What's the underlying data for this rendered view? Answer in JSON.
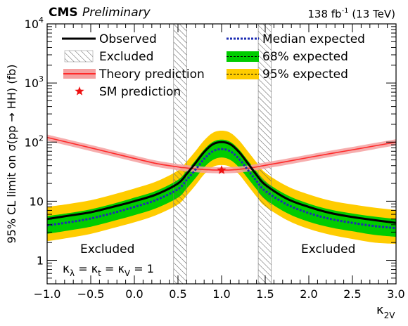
{
  "header": {
    "experiment": "CMS",
    "status": "Preliminary",
    "lumi_prefix": "138 fb",
    "lumi_exp": "-1",
    "lumi_suffix": " (13 TeV)"
  },
  "axes": {
    "ylabel": "95% CL limit on σ(pp → HH) (fb)",
    "xlabel_main": "κ",
    "xlabel_sub": "2V"
  },
  "annotations": {
    "excluded_left": "Excluded",
    "excluded_right": "Excluded",
    "note_kappa": "κ",
    "note_lambda": "λ",
    "note_eq1": " = κ",
    "note_t": "t",
    "note_eq2": " = κ",
    "note_v": "V",
    "note_eq3": " = 1"
  },
  "legend": {
    "observed": "Observed",
    "excluded": "Excluded",
    "theory": "Theory prediction",
    "sm": "SM prediction",
    "median": "Median expected",
    "band68": "68% expected",
    "band95": "95% expected"
  },
  "colors": {
    "observed": "#000000",
    "median": "#1d2db3",
    "band68": "#00cc00",
    "band95": "#ffcc00",
    "theory": "#ff2a2a",
    "theory_band": "#f4a0a0",
    "sm_star": "#ee1111",
    "excluded_hatch": "#555555"
  },
  "chart_data": {
    "type": "line",
    "title": "",
    "xlabel": "κ2V",
    "ylabel": "95% CL limit on σ(pp → HH) (fb)",
    "xlim": [
      -1.0,
      3.0
    ],
    "ylim": [
      0.4,
      10000
    ],
    "yscale": "log",
    "x_ticks": [
      "−1.0",
      "−0.5",
      "0.0",
      "0.5",
      "1.0",
      "1.5",
      "2.0",
      "2.5",
      "3.0"
    ],
    "x_tick_values": [
      -1.0,
      -0.5,
      0.0,
      0.5,
      1.0,
      1.5,
      2.0,
      2.5,
      3.0
    ],
    "y_ticks": [
      {
        "value": 1,
        "base": "1",
        "exp": ""
      },
      {
        "value": 10,
        "base": "10",
        "exp": ""
      },
      {
        "value": 100,
        "base": "10",
        "exp": "2"
      },
      {
        "value": 1000,
        "base": "10",
        "exp": "3"
      },
      {
        "value": 10000,
        "base": "10",
        "exp": "4"
      }
    ],
    "x": [
      -1.0,
      -0.75,
      -0.5,
      -0.25,
      0.0,
      0.25,
      0.5,
      0.6,
      0.7,
      0.8,
      0.9,
      1.0,
      1.1,
      1.2,
      1.3,
      1.4,
      1.5,
      1.75,
      2.0,
      2.25,
      2.5,
      2.75,
      3.0
    ],
    "series": [
      {
        "name": "Observed",
        "values": [
          5.0,
          5.7,
          6.5,
          8.0,
          10.0,
          13.0,
          20.0,
          29.0,
          44.0,
          68.0,
          92.0,
          100.0,
          92.0,
          68.0,
          44.0,
          28.0,
          19.0,
          11.0,
          8.0,
          6.3,
          5.4,
          4.8,
          4.3
        ]
      },
      {
        "name": "Median expected",
        "values": [
          3.9,
          4.4,
          5.1,
          6.3,
          8.0,
          10.5,
          16.0,
          23.0,
          34.0,
          52.0,
          70.0,
          76.0,
          70.0,
          52.0,
          34.0,
          22.0,
          15.0,
          8.8,
          6.3,
          5.0,
          4.3,
          3.8,
          3.5
        ]
      },
      {
        "name": "68% expected",
        "role": "band",
        "low": [
          2.8,
          3.2,
          3.7,
          4.6,
          5.8,
          7.6,
          11.5,
          16.5,
          24.5,
          37.5,
          50.0,
          55.0,
          50.0,
          37.5,
          24.5,
          16.0,
          10.8,
          6.3,
          4.5,
          3.6,
          3.1,
          2.7,
          2.5
        ],
        "high": [
          5.6,
          6.3,
          7.3,
          9.0,
          11.5,
          15.0,
          23.0,
          33.0,
          49.0,
          75.0,
          101.0,
          110.0,
          101.0,
          75.0,
          49.0,
          32.0,
          21.5,
          12.7,
          9.1,
          7.2,
          6.2,
          5.5,
          5.0
        ]
      },
      {
        "name": "95% expected",
        "role": "band",
        "low": [
          2.1,
          2.4,
          2.8,
          3.5,
          4.4,
          5.8,
          8.8,
          12.5,
          18.5,
          28.5,
          38.0,
          41.0,
          38.0,
          28.5,
          18.5,
          12.0,
          8.2,
          4.8,
          3.4,
          2.7,
          2.3,
          2.0,
          1.9
        ],
        "high": [
          8.0,
          9.0,
          10.4,
          12.9,
          16.4,
          21.5,
          33.0,
          47.0,
          70.0,
          107.0,
          144.0,
          156.0,
          144.0,
          107.0,
          70.0,
          45.5,
          30.5,
          18.0,
          13.0,
          10.2,
          8.8,
          7.8,
          7.1
        ]
      },
      {
        "name": "Theory prediction",
        "values": [
          120.0,
          98.0,
          80.0,
          65.0,
          53.0,
          43.5,
          38.0,
          36.5,
          35.2,
          34.3,
          33.8,
          33.6,
          33.8,
          34.6,
          36.0,
          38.0,
          40.5,
          47.0,
          55.0,
          64.0,
          74.0,
          86.0,
          100.0
        ],
        "band_rel": 0.12
      }
    ],
    "sm_point": {
      "x": 1.0,
      "y": 33.6
    },
    "excluded_regions": [
      [
        -1.0,
        0.45
      ],
      [
        1.55,
        3.0
      ]
    ],
    "hatched_boundaries": [
      [
        0.45,
        0.6
      ],
      [
        1.42,
        1.57
      ]
    ],
    "legend_position": "top"
  }
}
